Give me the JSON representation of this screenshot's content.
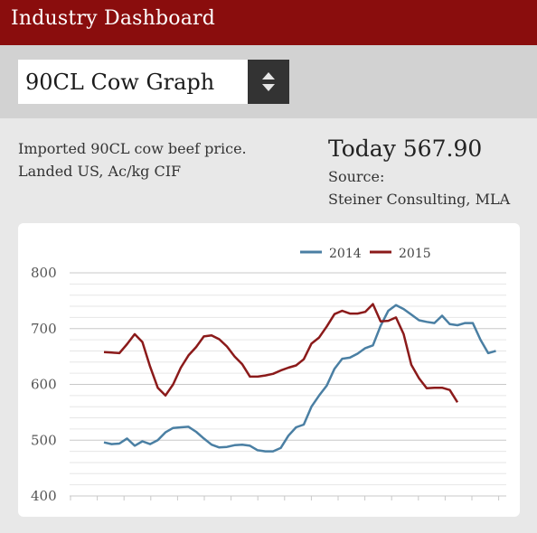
{
  "header": {
    "title": "Industry Dashboard"
  },
  "selector": {
    "value": "90CL Cow Graph",
    "arrows_icon": "up-down-arrows-icon"
  },
  "description": {
    "line1": "Imported 90CL cow beef price.",
    "line2": "Landed US, Ac/kg CIF"
  },
  "today": {
    "label": "Today",
    "value": "567.90"
  },
  "source": {
    "label": "Source:",
    "value": "Steiner Consulting, MLA"
  },
  "colors": {
    "header": "#8a0d0d",
    "series_2014": "#4a7fa3",
    "series_2015": "#8b1a1a"
  },
  "chart_data": {
    "type": "line",
    "title": "",
    "xlabel": "",
    "ylabel": "",
    "ylim": [
      400,
      800
    ],
    "yticks": [
      400,
      500,
      600,
      700,
      800
    ],
    "grid": true,
    "legend": "top-right",
    "series": [
      {
        "name": "2014",
        "color": "#4a7fa3",
        "values": [
          496,
          493,
          494,
          503,
          490,
          498,
          493,
          500,
          514,
          522,
          523,
          524,
          515,
          503,
          492,
          487,
          488,
          491,
          492,
          490,
          482,
          480,
          480,
          486,
          508,
          523,
          528,
          560,
          580,
          598,
          628,
          646,
          648,
          655,
          665,
          670,
          705,
          732,
          742,
          735,
          725,
          715,
          712,
          710,
          723,
          708,
          706,
          710,
          710,
          680,
          656,
          660
        ]
      },
      {
        "name": "2015",
        "color": "#8b1a1a",
        "values": [
          658,
          657,
          656,
          672,
          690,
          676,
          632,
          594,
          580,
          600,
          630,
          652,
          667,
          686,
          688,
          681,
          668,
          650,
          636,
          614,
          614,
          616,
          619,
          625,
          630,
          634,
          645,
          673,
          684,
          704,
          726,
          732,
          727,
          727,
          730,
          744,
          713,
          714,
          720,
          690,
          635,
          611,
          593,
          594,
          594,
          590,
          568
        ]
      }
    ]
  }
}
